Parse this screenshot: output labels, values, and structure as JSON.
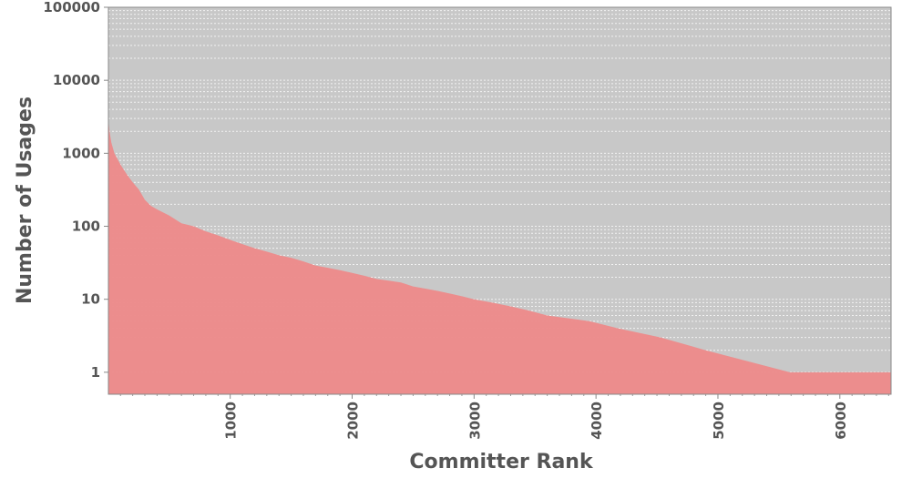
{
  "chart_data": {
    "type": "area",
    "title": "",
    "xlabel": "Committer Rank",
    "ylabel": "Number of Usages",
    "y_scale": "log",
    "xlim": [
      1,
      6420
    ],
    "ylim": [
      0.5,
      100000
    ],
    "x_ticks": [
      1000,
      2000,
      3000,
      4000,
      5000,
      6000
    ],
    "x_tick_labels": [
      "1000",
      "2000",
      "3000",
      "4000",
      "5000",
      "6000"
    ],
    "y_ticks": [
      1,
      10,
      100,
      1000,
      10000,
      100000
    ],
    "y_tick_labels": [
      "1",
      "10",
      "100",
      "1000",
      "10000",
      "100000"
    ],
    "grid": "horizontal dotted minor",
    "colors": {
      "plot_background": "#c8c8c8",
      "fill": "#ec8a8a",
      "grid": "#f2f2f2",
      "text": "#555555"
    },
    "series": [
      {
        "x": [
          1,
          10,
          25,
          50,
          100,
          150,
          200,
          250,
          300,
          350,
          400,
          500,
          600,
          700,
          800,
          900,
          1000,
          1100,
          1200,
          1300,
          1400,
          1500,
          1600,
          1700,
          1800,
          1900,
          2000,
          2100,
          2200,
          2300,
          2400,
          2500,
          2600,
          2700,
          2800,
          2900,
          3000,
          3150,
          3300,
          3450,
          3600,
          3950,
          4180,
          4530,
          4900,
          5590,
          6420
        ],
        "values": [
          3000,
          2000,
          1400,
          1000,
          700,
          520,
          400,
          320,
          230,
          190,
          170,
          140,
          110,
          100,
          85,
          75,
          65,
          57,
          50,
          45,
          40,
          37,
          33,
          29,
          27,
          25,
          23,
          21,
          19,
          18,
          17,
          15,
          14,
          13,
          12,
          11,
          10,
          9,
          8,
          7,
          6,
          5,
          4,
          3,
          2,
          1,
          1
        ]
      }
    ]
  }
}
